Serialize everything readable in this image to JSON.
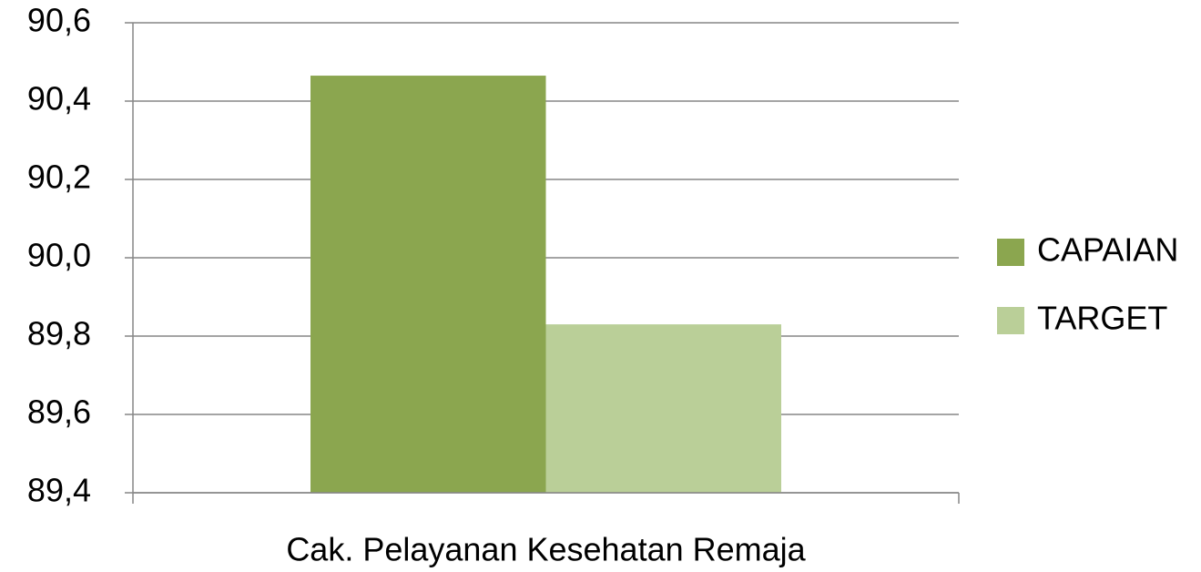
{
  "chart_data": {
    "type": "bar",
    "categories": [
      "Cak. Pelayanan Kesehatan Remaja"
    ],
    "series": [
      {
        "name": "CAPAIAN",
        "color": "#8ba64f",
        "values": [
          90.465
        ]
      },
      {
        "name": "TARGET",
        "color": "#bacf98",
        "values": [
          89.83
        ]
      }
    ],
    "ylim": [
      89.4,
      90.6
    ],
    "yticks": [
      {
        "value": 89.4,
        "label": "89,4"
      },
      {
        "value": 89.6,
        "label": "89,6"
      },
      {
        "value": 89.8,
        "label": "89,8"
      },
      {
        "value": 90.0,
        "label": "90,0"
      },
      {
        "value": 90.2,
        "label": "90,2"
      },
      {
        "value": 90.4,
        "label": "90,4"
      },
      {
        "value": 90.6,
        "label": "90,6"
      }
    ],
    "grid": true,
    "legend": "right"
  }
}
